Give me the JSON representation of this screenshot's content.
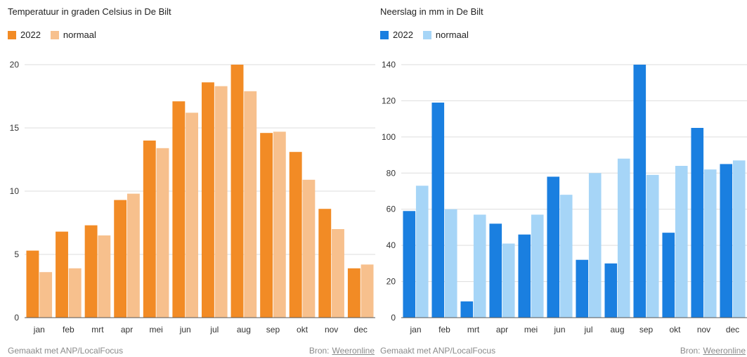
{
  "charts": [
    {
      "title": "Temperatuur in graden Celsius in De Bilt",
      "legend": [
        "2022",
        "normaal"
      ],
      "colors": {
        "2022": "#f28b25",
        "normaal": "#f7c08d"
      },
      "footer": {
        "made_with": "Gemaakt met ANP/LocalFocus",
        "source_label": "Bron:",
        "source_link": "Weeronline"
      }
    },
    {
      "title": "Neerslag in mm in De Bilt",
      "legend": [
        "2022",
        "normaal"
      ],
      "colors": {
        "2022": "#1a7fe0",
        "normaal": "#a6d5f7"
      },
      "footer": {
        "made_with": "Gemaakt met ANP/LocalFocus",
        "source_label": "Bron:",
        "source_link": "Weeronline"
      }
    }
  ],
  "chart_data": [
    {
      "type": "bar",
      "title": "Temperatuur in graden Celsius in De Bilt",
      "categories": [
        "jan",
        "feb",
        "mrt",
        "apr",
        "mei",
        "jun",
        "jul",
        "aug",
        "sep",
        "okt",
        "nov",
        "dec"
      ],
      "series": [
        {
          "name": "2022",
          "values": [
            5.3,
            6.8,
            7.3,
            9.3,
            14.0,
            17.1,
            18.6,
            20.0,
            14.6,
            13.1,
            8.6,
            3.9
          ]
        },
        {
          "name": "normaal",
          "values": [
            3.6,
            3.9,
            6.5,
            9.8,
            13.4,
            16.2,
            18.3,
            17.9,
            14.7,
            10.9,
            7.0,
            4.2
          ]
        }
      ],
      "ylim": [
        0,
        20
      ],
      "yticks": [
        0,
        5,
        10,
        15,
        20
      ],
      "grid": true,
      "legend_position": "top-left"
    },
    {
      "type": "bar",
      "title": "Neerslag in mm in De Bilt",
      "categories": [
        "jan",
        "feb",
        "mrt",
        "apr",
        "mei",
        "jun",
        "jul",
        "aug",
        "sep",
        "okt",
        "nov",
        "dec"
      ],
      "series": [
        {
          "name": "2022",
          "values": [
            59,
            119,
            9,
            52,
            46,
            78,
            32,
            30,
            140,
            47,
            105,
            85
          ]
        },
        {
          "name": "normaal",
          "values": [
            73,
            60,
            57,
            41,
            57,
            68,
            80,
            88,
            79,
            84,
            82,
            87
          ]
        }
      ],
      "ylim": [
        0,
        140
      ],
      "yticks": [
        0,
        20,
        40,
        60,
        80,
        100,
        120,
        140
      ],
      "grid": true,
      "legend_position": "top-left"
    }
  ]
}
